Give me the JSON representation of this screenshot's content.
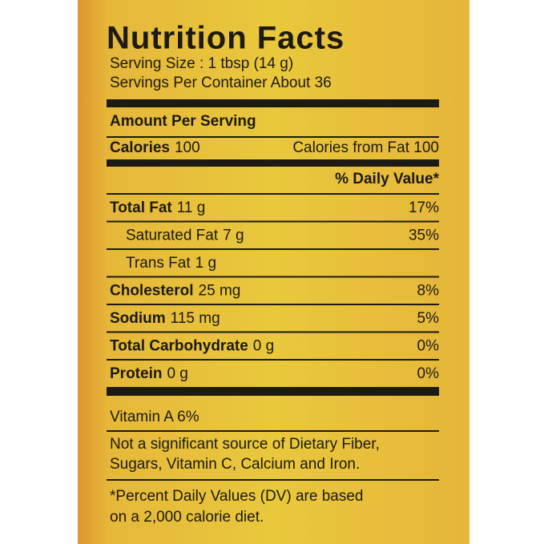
{
  "title": "Nutrition Facts",
  "serving": [
    "Serving Size : 1 tbsp (14 g)",
    "Servings Per Container About 36"
  ],
  "amount_per_serving": "Amount Per Serving",
  "calories": {
    "label": "Calories",
    "value": "100",
    "from_fat": "Calories from Fat 100"
  },
  "daily_value_header": "% Daily Value*",
  "rows": [
    {
      "name": "Total Fat",
      "amount": "11 g",
      "dv": "17%",
      "bold": true
    },
    {
      "name": "Saturated Fat",
      "amount": "7 g",
      "dv": "35%",
      "bold": false
    },
    {
      "name": "Trans Fat",
      "amount": "1 g",
      "bold": false
    },
    {
      "name": "Cholesterol",
      "amount": "25 mg",
      "dv": "8%",
      "bold": true
    },
    {
      "name": "Sodium",
      "amount": "115 mg",
      "dv": "5%",
      "bold": true
    },
    {
      "name": "Total Carbohydrate",
      "amount": "0 g",
      "dv": "0%",
      "bold": true
    },
    {
      "name": "Protein",
      "amount": "0 g",
      "dv": "0%",
      "bold": true
    }
  ],
  "vitamin": "Vitamin A 6%",
  "note": [
    "Not a significant source of Dietary Fiber,",
    "Sugars, Vitamin C, Calcium and Iron."
  ],
  "footnote": [
    "*Percent Daily Values (DV) are based",
    "on a 2,000 calorie diet."
  ]
}
